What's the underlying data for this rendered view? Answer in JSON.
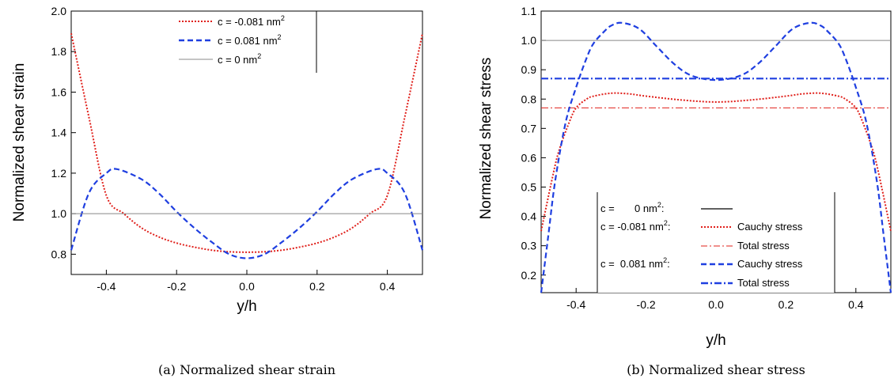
{
  "chart_data": [
    {
      "type": "line",
      "caption": "(a) Normalized shear strain",
      "xlabel": "y/h",
      "ylabel": "Normalized shear strain",
      "xlim": [
        -0.5,
        0.5
      ],
      "ylim": [
        0.7,
        2.0
      ],
      "xticks": [
        "-0.4",
        "-0.2",
        "0.0",
        "0.2",
        "0.4"
      ],
      "yticks": [
        "0.8",
        "1.0",
        "1.2",
        "1.4",
        "1.6",
        "1.8",
        "2.0"
      ],
      "legend_position": "top-right",
      "series": [
        {
          "name": "c = -0.081 nm",
          "sup": "2",
          "color": "#e0201b",
          "style": "dotted",
          "x": [
            -0.5,
            -0.45,
            -0.4,
            -0.35,
            -0.3,
            -0.25,
            -0.2,
            -0.15,
            -0.1,
            -0.05,
            0.0,
            0.05,
            0.1,
            0.15,
            0.2,
            0.25,
            0.3,
            0.35,
            0.4,
            0.45,
            0.5
          ],
          "y": [
            1.89,
            1.48,
            1.09,
            1.0,
            0.93,
            0.885,
            0.855,
            0.835,
            0.82,
            0.812,
            0.81,
            0.812,
            0.82,
            0.835,
            0.855,
            0.885,
            0.93,
            1.0,
            1.09,
            1.48,
            1.89
          ]
        },
        {
          "name": "c = 0.081 nm",
          "sup": "2",
          "color": "#1f3fe0",
          "style": "dashed",
          "x": [
            -0.5,
            -0.45,
            -0.4,
            -0.37,
            -0.3,
            -0.25,
            -0.2,
            -0.15,
            -0.1,
            -0.05,
            0.0,
            0.05,
            0.1,
            0.15,
            0.2,
            0.25,
            0.3,
            0.37,
            0.4,
            0.45,
            0.5
          ],
          "y": [
            0.82,
            1.1,
            1.2,
            1.22,
            1.17,
            1.1,
            1.01,
            0.93,
            0.86,
            0.8,
            0.78,
            0.8,
            0.86,
            0.93,
            1.01,
            1.1,
            1.17,
            1.22,
            1.2,
            1.1,
            0.82
          ]
        },
        {
          "name": "c =  0 nm",
          "sup": "2",
          "color": "#888888",
          "style": "solid",
          "x": [
            -0.5,
            0.5
          ],
          "y": [
            1.0,
            1.0
          ]
        }
      ]
    },
    {
      "type": "line",
      "caption": "(b) Normalized shear stress",
      "xlabel": "y/h",
      "ylabel": "Normalized shear stress",
      "xlim": [
        -0.5,
        0.5
      ],
      "ylim": [
        0.14,
        1.1
      ],
      "xticks": [
        "-0.4",
        "-0.2",
        "0.0",
        "0.2",
        "0.4"
      ],
      "yticks": [
        "0.2",
        "0.3",
        "0.4",
        "0.5",
        "0.6",
        "0.7",
        "0.8",
        "0.9",
        "1.0",
        "1.1"
      ],
      "legend_position": "bottom-center",
      "legend": {
        "zero_label": "c =       0 nm",
        "neg_label": "c = -0.081 nm",
        "pos_label": "c =  0.081 nm",
        "sup": "2",
        "suffix": ":",
        "cauchy": "Cauchy stress",
        "total": "Total stress"
      },
      "series": [
        {
          "key": "zero",
          "color": "#888888",
          "style": "solid",
          "x": [
            -0.5,
            0.5
          ],
          "y": [
            1.0,
            1.0
          ]
        },
        {
          "key": "neg_cauchy",
          "color": "#e0201b",
          "style": "dotted",
          "x": [
            -0.5,
            -0.47,
            -0.45,
            -0.42,
            -0.4,
            -0.37,
            -0.35,
            -0.3,
            -0.25,
            -0.2,
            -0.1,
            0.0,
            0.1,
            0.2,
            0.25,
            0.3,
            0.35,
            0.37,
            0.4,
            0.42,
            0.45,
            0.47,
            0.5
          ],
          "y": [
            0.35,
            0.52,
            0.62,
            0.72,
            0.77,
            0.8,
            0.81,
            0.82,
            0.818,
            0.81,
            0.797,
            0.79,
            0.797,
            0.81,
            0.818,
            0.82,
            0.81,
            0.8,
            0.77,
            0.72,
            0.62,
            0.52,
            0.35
          ]
        },
        {
          "key": "neg_total",
          "color": "#e0201b",
          "style": "dashdot",
          "x": [
            -0.5,
            0.5
          ],
          "y": [
            0.77,
            0.77
          ]
        },
        {
          "key": "pos_cauchy",
          "color": "#1f3fe0",
          "style": "dashed",
          "x": [
            -0.5,
            -0.48,
            -0.46,
            -0.43,
            -0.4,
            -0.37,
            -0.35,
            -0.32,
            -0.3,
            -0.27,
            -0.22,
            -0.17,
            -0.12,
            -0.07,
            0.0,
            0.07,
            0.12,
            0.17,
            0.22,
            0.27,
            0.3,
            0.32,
            0.35,
            0.37,
            0.4,
            0.43,
            0.46,
            0.48,
            0.5
          ],
          "y": [
            0.14,
            0.33,
            0.52,
            0.72,
            0.84,
            0.94,
            0.99,
            1.03,
            1.05,
            1.06,
            1.04,
            0.98,
            0.92,
            0.88,
            0.865,
            0.88,
            0.92,
            0.98,
            1.04,
            1.06,
            1.05,
            1.03,
            0.99,
            0.94,
            0.84,
            0.72,
            0.52,
            0.33,
            0.14
          ]
        },
        {
          "key": "pos_total",
          "color": "#1f3fe0",
          "style": "dashdot",
          "x": [
            -0.5,
            0.5
          ],
          "y": [
            0.87,
            0.87
          ]
        }
      ]
    }
  ]
}
